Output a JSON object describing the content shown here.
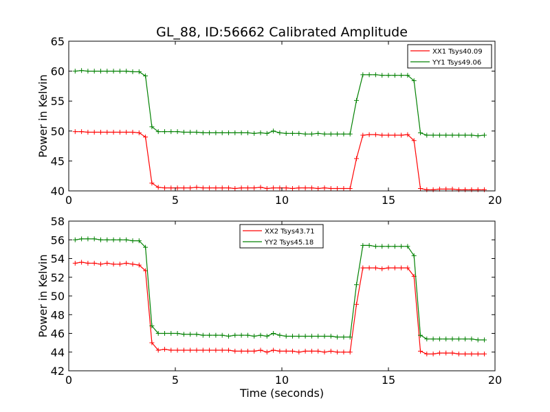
{
  "title": "GL_88, ID:56662 Calibrated Amplitude",
  "chart_data": [
    {
      "type": "line",
      "ylabel": "Power in Kelvin",
      "xlabel": "",
      "xlim": [
        0,
        20
      ],
      "ylim": [
        40,
        65
      ],
      "xticks": [
        0,
        5,
        10,
        15,
        20
      ],
      "yticks": [
        40,
        45,
        50,
        55,
        60,
        65
      ],
      "legend_position": "top-right",
      "series": [
        {
          "name": "XX1 Tsys40.09",
          "color": "#ff0000",
          "x": [
            0.3,
            0.6,
            0.9,
            1.2,
            1.5,
            1.8,
            2.1,
            2.4,
            2.7,
            3.0,
            3.3,
            3.6,
            3.9,
            4.2,
            4.5,
            4.8,
            5.1,
            5.4,
            5.7,
            6.0,
            6.3,
            6.6,
            6.9,
            7.2,
            7.5,
            7.8,
            8.1,
            8.4,
            8.7,
            9.0,
            9.3,
            9.6,
            9.9,
            10.2,
            10.5,
            10.8,
            11.1,
            11.4,
            11.7,
            12.0,
            12.3,
            12.6,
            12.9,
            13.2,
            13.5,
            13.8,
            14.1,
            14.4,
            14.7,
            15.0,
            15.3,
            15.6,
            15.9,
            16.2,
            16.5,
            16.8,
            17.1,
            17.4,
            17.7,
            18.0,
            18.3,
            18.6,
            18.9,
            19.2,
            19.5
          ],
          "values": [
            49.9,
            49.9,
            49.8,
            49.8,
            49.8,
            49.8,
            49.8,
            49.8,
            49.8,
            49.8,
            49.7,
            49.0,
            41.3,
            40.6,
            40.5,
            40.5,
            40.5,
            40.5,
            40.5,
            40.6,
            40.5,
            40.5,
            40.5,
            40.5,
            40.5,
            40.4,
            40.5,
            40.5,
            40.5,
            40.6,
            40.4,
            40.5,
            40.5,
            40.5,
            40.4,
            40.5,
            40.5,
            40.5,
            40.4,
            40.5,
            40.4,
            40.4,
            40.4,
            40.4,
            45.4,
            49.3,
            49.4,
            49.4,
            49.3,
            49.3,
            49.3,
            49.3,
            49.4,
            48.4,
            40.4,
            40.2,
            40.2,
            40.3,
            40.3,
            40.3,
            40.2,
            40.2,
            40.2,
            40.2,
            40.2
          ]
        },
        {
          "name": "YY1 Tsys49.06",
          "color": "#008000",
          "x": [
            0.3,
            0.6,
            0.9,
            1.2,
            1.5,
            1.8,
            2.1,
            2.4,
            2.7,
            3.0,
            3.3,
            3.6,
            3.9,
            4.2,
            4.5,
            4.8,
            5.1,
            5.4,
            5.7,
            6.0,
            6.3,
            6.6,
            6.9,
            7.2,
            7.5,
            7.8,
            8.1,
            8.4,
            8.7,
            9.0,
            9.3,
            9.6,
            9.9,
            10.2,
            10.5,
            10.8,
            11.1,
            11.4,
            11.7,
            12.0,
            12.3,
            12.6,
            12.9,
            13.2,
            13.5,
            13.8,
            14.1,
            14.4,
            14.7,
            15.0,
            15.3,
            15.6,
            15.9,
            16.2,
            16.5,
            16.8,
            17.1,
            17.4,
            17.7,
            18.0,
            18.3,
            18.6,
            18.9,
            19.2,
            19.5
          ],
          "values": [
            60.0,
            60.1,
            60.0,
            60.0,
            60.0,
            60.0,
            60.0,
            60.0,
            60.0,
            59.9,
            59.9,
            59.2,
            50.7,
            49.9,
            49.9,
            49.9,
            49.9,
            49.8,
            49.8,
            49.8,
            49.7,
            49.7,
            49.7,
            49.7,
            49.7,
            49.7,
            49.7,
            49.7,
            49.6,
            49.7,
            49.6,
            50.0,
            49.7,
            49.6,
            49.6,
            49.6,
            49.5,
            49.5,
            49.6,
            49.5,
            49.5,
            49.5,
            49.5,
            49.5,
            55.1,
            59.4,
            59.4,
            59.4,
            59.3,
            59.3,
            59.3,
            59.3,
            59.3,
            58.4,
            49.7,
            49.3,
            49.3,
            49.3,
            49.3,
            49.3,
            49.3,
            49.3,
            49.3,
            49.2,
            49.3
          ]
        }
      ]
    },
    {
      "type": "line",
      "ylabel": "Power in Kelvin",
      "xlabel": "Time (seconds)",
      "xlim": [
        0,
        20
      ],
      "ylim": [
        42,
        58
      ],
      "xticks": [
        0,
        5,
        10,
        15,
        20
      ],
      "yticks": [
        42,
        44,
        46,
        48,
        50,
        52,
        54,
        56,
        58
      ],
      "legend_position": "top-center",
      "series": [
        {
          "name": "XX2 Tsys43.71",
          "color": "#ff0000",
          "x": [
            0.3,
            0.6,
            0.9,
            1.2,
            1.5,
            1.8,
            2.1,
            2.4,
            2.7,
            3.0,
            3.3,
            3.6,
            3.9,
            4.2,
            4.5,
            4.8,
            5.1,
            5.4,
            5.7,
            6.0,
            6.3,
            6.6,
            6.9,
            7.2,
            7.5,
            7.8,
            8.1,
            8.4,
            8.7,
            9.0,
            9.3,
            9.6,
            9.9,
            10.2,
            10.5,
            10.8,
            11.1,
            11.4,
            11.7,
            12.0,
            12.3,
            12.6,
            12.9,
            13.2,
            13.5,
            13.8,
            14.1,
            14.4,
            14.7,
            15.0,
            15.3,
            15.6,
            15.9,
            16.2,
            16.5,
            16.8,
            17.1,
            17.4,
            17.7,
            18.0,
            18.3,
            18.6,
            18.9,
            19.2,
            19.5
          ],
          "values": [
            53.5,
            53.6,
            53.5,
            53.5,
            53.4,
            53.5,
            53.4,
            53.4,
            53.5,
            53.4,
            53.3,
            52.7,
            45.0,
            44.2,
            44.3,
            44.2,
            44.2,
            44.2,
            44.2,
            44.2,
            44.2,
            44.2,
            44.2,
            44.2,
            44.2,
            44.1,
            44.1,
            44.1,
            44.1,
            44.2,
            44.0,
            44.2,
            44.1,
            44.1,
            44.1,
            44.0,
            44.1,
            44.1,
            44.1,
            44.0,
            44.1,
            44.0,
            44.0,
            44.0,
            49.1,
            53.0,
            53.0,
            53.0,
            52.9,
            53.0,
            53.0,
            53.0,
            53.0,
            52.1,
            44.1,
            43.8,
            43.8,
            43.9,
            43.9,
            43.9,
            43.8,
            43.8,
            43.8,
            43.8,
            43.8
          ]
        },
        {
          "name": "YY2 Tsys45.18",
          "color": "#008000",
          "x": [
            0.3,
            0.6,
            0.9,
            1.2,
            1.5,
            1.8,
            2.1,
            2.4,
            2.7,
            3.0,
            3.3,
            3.6,
            3.9,
            4.2,
            4.5,
            4.8,
            5.1,
            5.4,
            5.7,
            6.0,
            6.3,
            6.6,
            6.9,
            7.2,
            7.5,
            7.8,
            8.1,
            8.4,
            8.7,
            9.0,
            9.3,
            9.6,
            9.9,
            10.2,
            10.5,
            10.8,
            11.1,
            11.4,
            11.7,
            12.0,
            12.3,
            12.6,
            12.9,
            13.2,
            13.5,
            13.8,
            14.1,
            14.4,
            14.7,
            15.0,
            15.3,
            15.6,
            15.9,
            16.2,
            16.5,
            16.8,
            17.1,
            17.4,
            17.7,
            18.0,
            18.3,
            18.6,
            18.9,
            19.2,
            19.5
          ],
          "values": [
            56.0,
            56.1,
            56.1,
            56.1,
            56.0,
            56.0,
            56.0,
            56.0,
            56.0,
            55.9,
            55.9,
            55.2,
            46.8,
            46.0,
            46.0,
            46.0,
            46.0,
            45.9,
            45.9,
            45.9,
            45.8,
            45.8,
            45.8,
            45.8,
            45.7,
            45.8,
            45.8,
            45.8,
            45.7,
            45.8,
            45.7,
            46.0,
            45.8,
            45.7,
            45.7,
            45.7,
            45.7,
            45.7,
            45.7,
            45.7,
            45.7,
            45.6,
            45.6,
            45.6,
            51.2,
            55.4,
            55.4,
            55.3,
            55.3,
            55.3,
            55.3,
            55.3,
            55.3,
            54.3,
            45.8,
            45.4,
            45.4,
            45.4,
            45.4,
            45.4,
            45.4,
            45.4,
            45.4,
            45.3,
            45.3
          ]
        }
      ]
    }
  ]
}
